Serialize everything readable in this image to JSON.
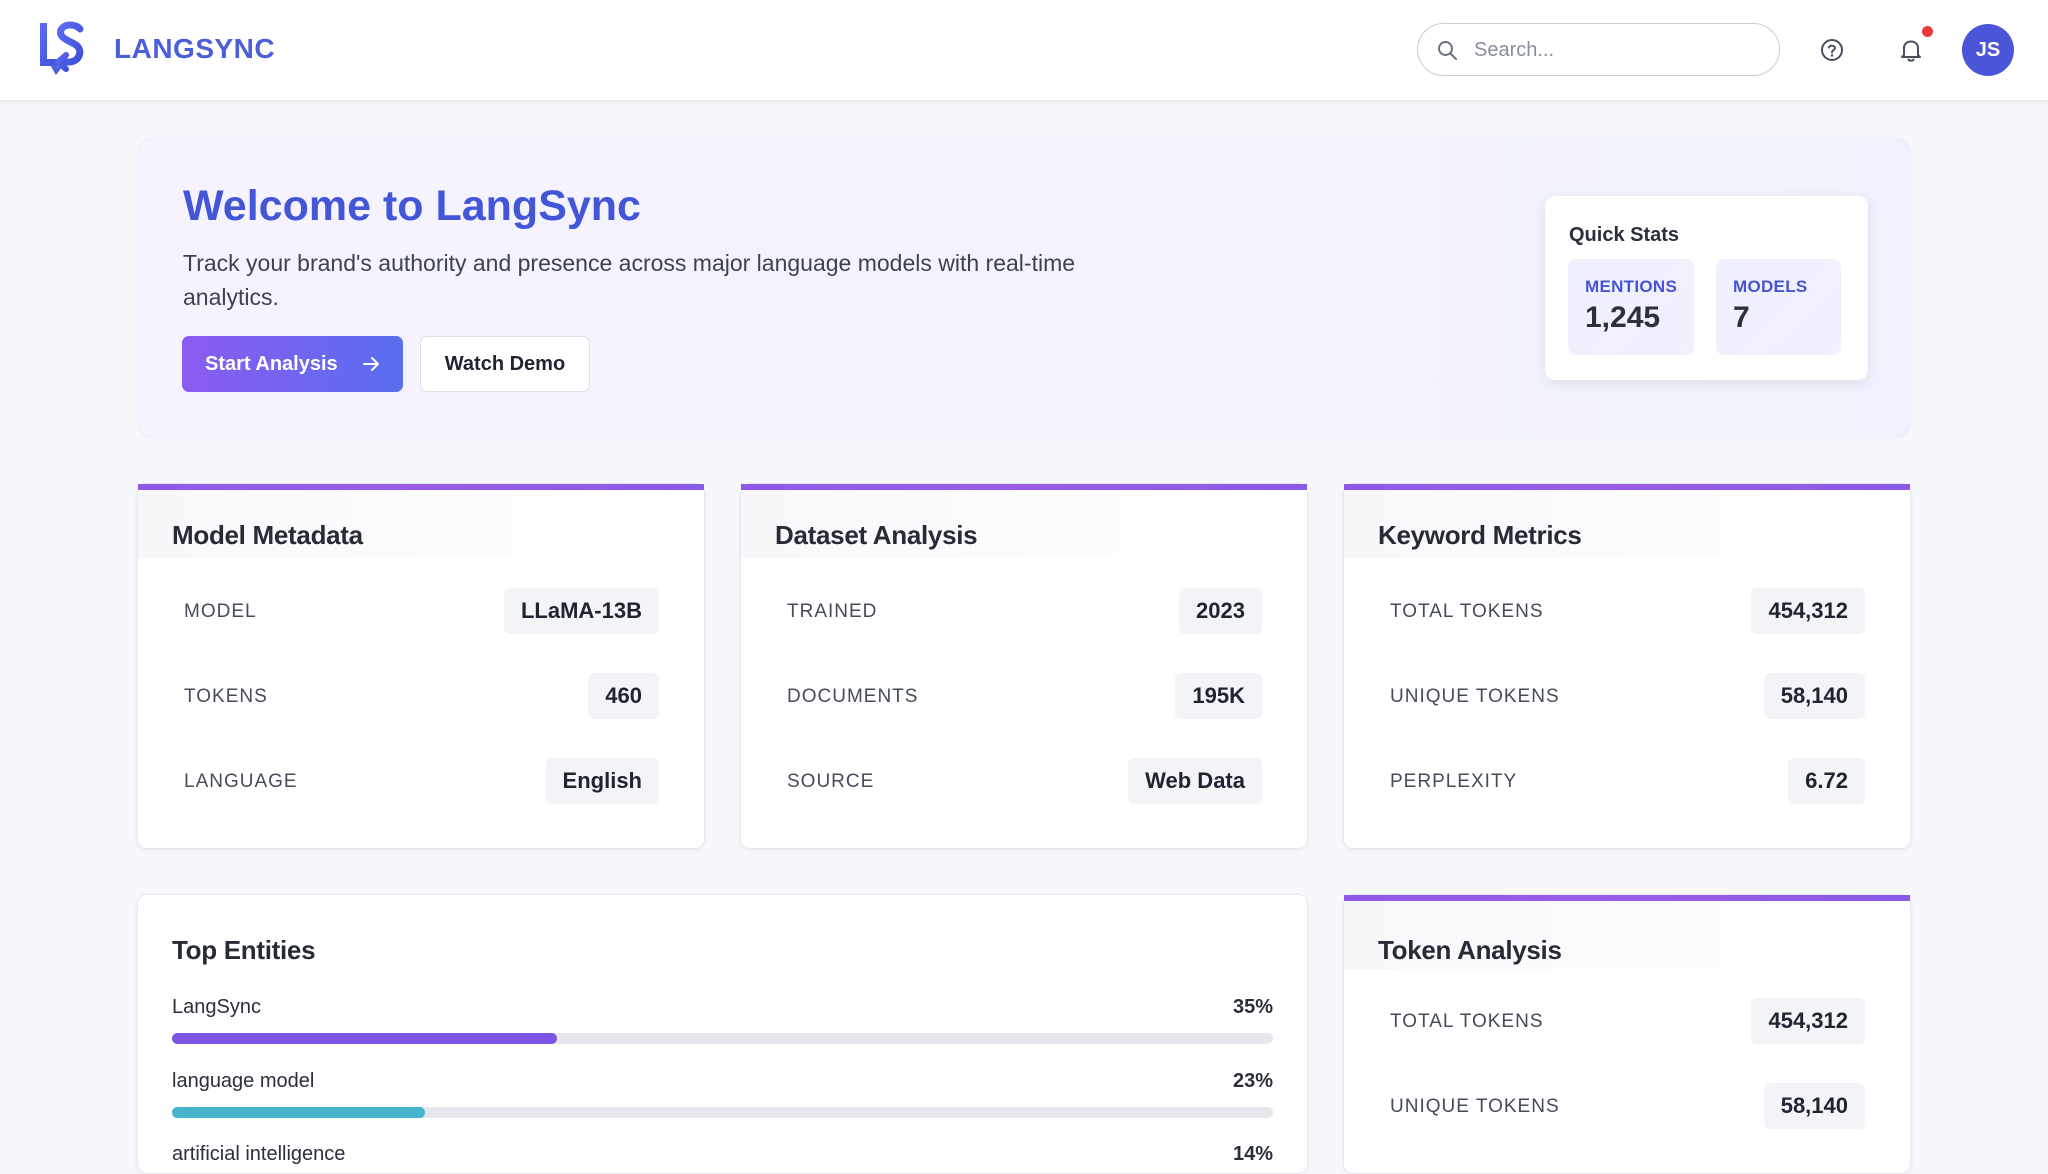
{
  "header": {
    "brand": "LANGSYNC",
    "search_placeholder": "Search...",
    "avatar_initials": "JS"
  },
  "hero": {
    "title": "Welcome to LangSync",
    "description": "Track your brand's authority and presence across major language models with real-time analytics.",
    "primary_button": "Start Analysis",
    "secondary_button": "Watch Demo",
    "quick_stats": {
      "title": "Quick Stats",
      "items": [
        {
          "label": "MENTIONS",
          "value": "1,245"
        },
        {
          "label": "MODELS",
          "value": "7"
        }
      ]
    }
  },
  "cards": {
    "model_metadata": {
      "title": "Model Metadata",
      "rows": [
        {
          "label": "MODEL",
          "value": "LLaMA-13B"
        },
        {
          "label": "TOKENS",
          "value": "460"
        },
        {
          "label": "LANGUAGE",
          "value": "English"
        }
      ]
    },
    "dataset_analysis": {
      "title": "Dataset Analysis",
      "rows": [
        {
          "label": "TRAINED",
          "value": "2023"
        },
        {
          "label": "DOCUMENTS",
          "value": "195K"
        },
        {
          "label": "SOURCE",
          "value": "Web Data"
        }
      ]
    },
    "keyword_metrics": {
      "title": "Keyword Metrics",
      "rows": [
        {
          "label": "TOTAL TOKENS",
          "value": "454,312"
        },
        {
          "label": "UNIQUE TOKENS",
          "value": "58,140"
        },
        {
          "label": "PERPLEXITY",
          "value": "6.72"
        }
      ]
    },
    "token_analysis": {
      "title": "Token Analysis",
      "rows": [
        {
          "label": "TOTAL TOKENS",
          "value": "454,312"
        },
        {
          "label": "UNIQUE TOKENS",
          "value": "58,140"
        }
      ]
    }
  },
  "top_entities": {
    "title": "Top Entities",
    "items": [
      {
        "name": "LangSync",
        "percent": 35,
        "percent_label": "35%",
        "color": "#7c55e3"
      },
      {
        "name": "language model",
        "percent": 23,
        "percent_label": "23%",
        "color": "#47b3cf"
      },
      {
        "name": "artificial intelligence",
        "percent": 14,
        "percent_label": "14%",
        "color": "#5a6ef0"
      }
    ]
  },
  "colors": {
    "brand": "#4a5fd9",
    "accent": "#8f5ae8",
    "notification": "#ea3b3b"
  }
}
